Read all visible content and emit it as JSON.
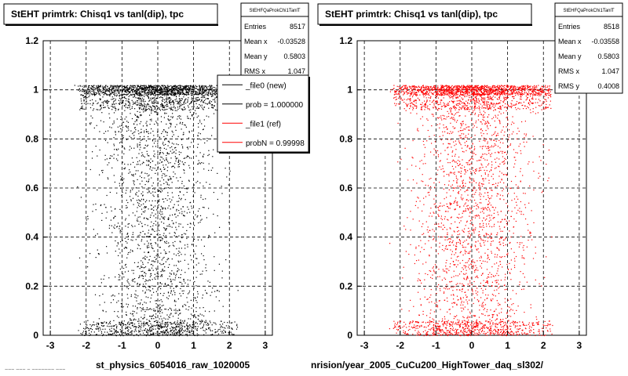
{
  "chart_data": [
    {
      "type": "scatter",
      "title": "StEHT primtrk: Chisq1 vs tanl(dip), tpc",
      "xlabel": "st_physics_6054016_raw_1020005",
      "ylabel": "",
      "xlim": [
        -3.2,
        3.2
      ],
      "ylim": [
        0,
        1.2
      ],
      "x_ticks": [
        "-3",
        "-2",
        "-1",
        "0",
        "1",
        "2",
        "3"
      ],
      "y_ticks": [
        "0",
        "0.2",
        "0.4",
        "0.6",
        "0.8",
        "1",
        "1.2"
      ],
      "grid": true,
      "color": "#000000",
      "stats": {
        "header": "StEHFQaProkChi1TanlT",
        "rows": [
          {
            "label": "Entries",
            "value": "8517"
          },
          {
            "label": "Mean x",
            "value": "-0.03528"
          },
          {
            "label": "Mean y",
            "value": "0.5803"
          },
          {
            "label": "RMS x",
            "value": "1.047"
          }
        ]
      },
      "legend": {
        "placement": "top-right",
        "entries": [
          {
            "label": "_file0 (new)",
            "color": "#000000"
          },
          {
            "label": "prob = 1.000000",
            "color": "#000000"
          },
          {
            "label": "_file1 (ref)",
            "color": "#ff0000"
          },
          {
            "label": "probN = 0.99998",
            "color": "#ff0000"
          }
        ]
      },
      "distribution": {
        "x_range": [
          -2.2,
          2.2
        ],
        "bands": [
          {
            "name": "upper",
            "y_range": [
              0.92,
              1.02
            ],
            "share": 0.45
          },
          {
            "name": "lower",
            "y_range": [
              0.0,
              0.06
            ],
            "share": 0.15
          },
          {
            "name": "body",
            "y_range": [
              0.06,
              0.92
            ],
            "share": 0.4
          }
        ]
      }
    },
    {
      "type": "scatter",
      "title": "StEHT primtrk: Chisq1 vs tanl(dip), tpc",
      "xlabel": "nrision/year_2005_CuCu200_HighTower_daq_sl302/",
      "ylabel": "",
      "xlim": [
        -3.2,
        3.2
      ],
      "ylim": [
        0,
        1.2
      ],
      "x_ticks": [
        "-3",
        "-2",
        "-1",
        "0",
        "1",
        "2",
        "3"
      ],
      "y_ticks": [
        "0",
        "0.2",
        "0.4",
        "0.6",
        "0.8",
        "1",
        "1.2"
      ],
      "grid": true,
      "color": "#ff0000",
      "stats": {
        "header": "StEHFQaProkChi1TanlT",
        "rows": [
          {
            "label": "Entries",
            "value": "8518"
          },
          {
            "label": "Mean x",
            "value": "-0.03558"
          },
          {
            "label": "Mean y",
            "value": "0.5803"
          },
          {
            "label": "RMS x",
            "value": "1.047"
          },
          {
            "label": "RMS y",
            "value": "0.4008"
          }
        ]
      },
      "distribution": {
        "x_range": [
          -2.2,
          2.2
        ],
        "bands": [
          {
            "name": "upper",
            "y_range": [
              0.92,
              1.02
            ],
            "share": 0.45
          },
          {
            "name": "lower",
            "y_range": [
              0.0,
              0.06
            ],
            "share": 0.15
          },
          {
            "name": "body",
            "y_range": [
              0.06,
              0.92
            ],
            "share": 0.4
          }
        ]
      }
    }
  ],
  "footer_text": "~~~ ~~~ ~ ~~~~~~~ ~~~"
}
